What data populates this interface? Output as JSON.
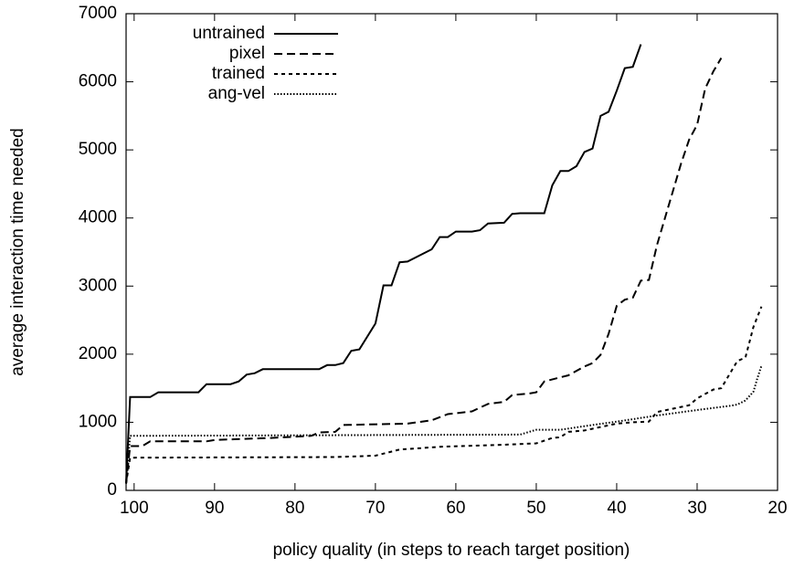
{
  "chart_data": {
    "type": "line",
    "x_label": "policy quality (in steps to reach target position)",
    "y_label": "average interaction time needed",
    "xlim": [
      101,
      20
    ],
    "ylim": [
      0,
      7000
    ],
    "xticks": [
      100,
      90,
      80,
      70,
      60,
      50,
      40,
      30,
      20
    ],
    "yticks": [
      0,
      1000,
      2000,
      3000,
      4000,
      5000,
      6000,
      7000
    ],
    "legend": "top-left",
    "series": [
      {
        "name": "untrained",
        "color": "#000000",
        "dash": "solid",
        "x": [
          101,
          100.5,
          98,
          97,
          92,
          91,
          88,
          87,
          86,
          85,
          84,
          77,
          76,
          75,
          74,
          73,
          72,
          70,
          69,
          68,
          67,
          66,
          63,
          62,
          61,
          60,
          58,
          57,
          56,
          54,
          53,
          52,
          49,
          48,
          47,
          46,
          45,
          44,
          43,
          42,
          41,
          40,
          39,
          38,
          37
        ],
        "values": [
          100,
          1370,
          1370,
          1440,
          1440,
          1560,
          1560,
          1600,
          1700,
          1720,
          1780,
          1780,
          1840,
          1840,
          1870,
          2050,
          2070,
          2450,
          3010,
          3010,
          3350,
          3360,
          3540,
          3720,
          3720,
          3800,
          3800,
          3820,
          3920,
          3930,
          4060,
          4070,
          4070,
          4480,
          4690,
          4690,
          4760,
          4970,
          5020,
          5500,
          5560,
          5870,
          6200,
          6220,
          6550
        ]
      },
      {
        "name": "pixel",
        "color": "#000000",
        "dash": "long",
        "x": [
          101,
          100.5,
          99,
          98,
          91,
          90,
          83,
          78,
          77,
          75,
          74,
          66,
          63,
          61,
          58,
          56,
          54,
          53,
          51,
          50,
          49,
          47,
          46,
          44,
          43,
          42,
          41,
          40,
          39,
          38,
          37,
          36,
          35,
          34,
          33,
          32,
          31,
          30,
          29,
          28,
          27
        ],
        "values": [
          100,
          650,
          650,
          720,
          720,
          740,
          770,
          800,
          850,
          860,
          960,
          980,
          1030,
          1120,
          1160,
          1270,
          1300,
          1400,
          1420,
          1440,
          1600,
          1660,
          1690,
          1820,
          1870,
          1990,
          2300,
          2710,
          2800,
          2830,
          3080,
          3090,
          3600,
          4000,
          4400,
          4800,
          5150,
          5370,
          5900,
          6150,
          6350
        ]
      },
      {
        "name": "trained",
        "color": "#000000",
        "dash": "short",
        "x": [
          101,
          100.5,
          75,
          70,
          67,
          62,
          54,
          50,
          48,
          47,
          46,
          44,
          42,
          40,
          38,
          36,
          35,
          33,
          31,
          30,
          28,
          27,
          26,
          25,
          24,
          23,
          22
        ],
        "values": [
          100,
          480,
          490,
          510,
          600,
          640,
          670,
          690,
          770,
          780,
          860,
          880,
          930,
          980,
          1000,
          1010,
          1150,
          1200,
          1250,
          1350,
          1480,
          1500,
          1700,
          1900,
          1950,
          2400,
          2700
        ]
      },
      {
        "name": "ang-vel",
        "color": "#000000",
        "dash": "dot",
        "x": [
          101,
          100.5,
          52,
          50,
          47,
          43,
          40,
          35,
          30,
          26,
          25,
          24,
          23,
          22.5,
          22
        ],
        "values": [
          100,
          800,
          820,
          890,
          890,
          960,
          1010,
          1100,
          1180,
          1240,
          1260,
          1320,
          1450,
          1650,
          1830
        ]
      }
    ]
  }
}
